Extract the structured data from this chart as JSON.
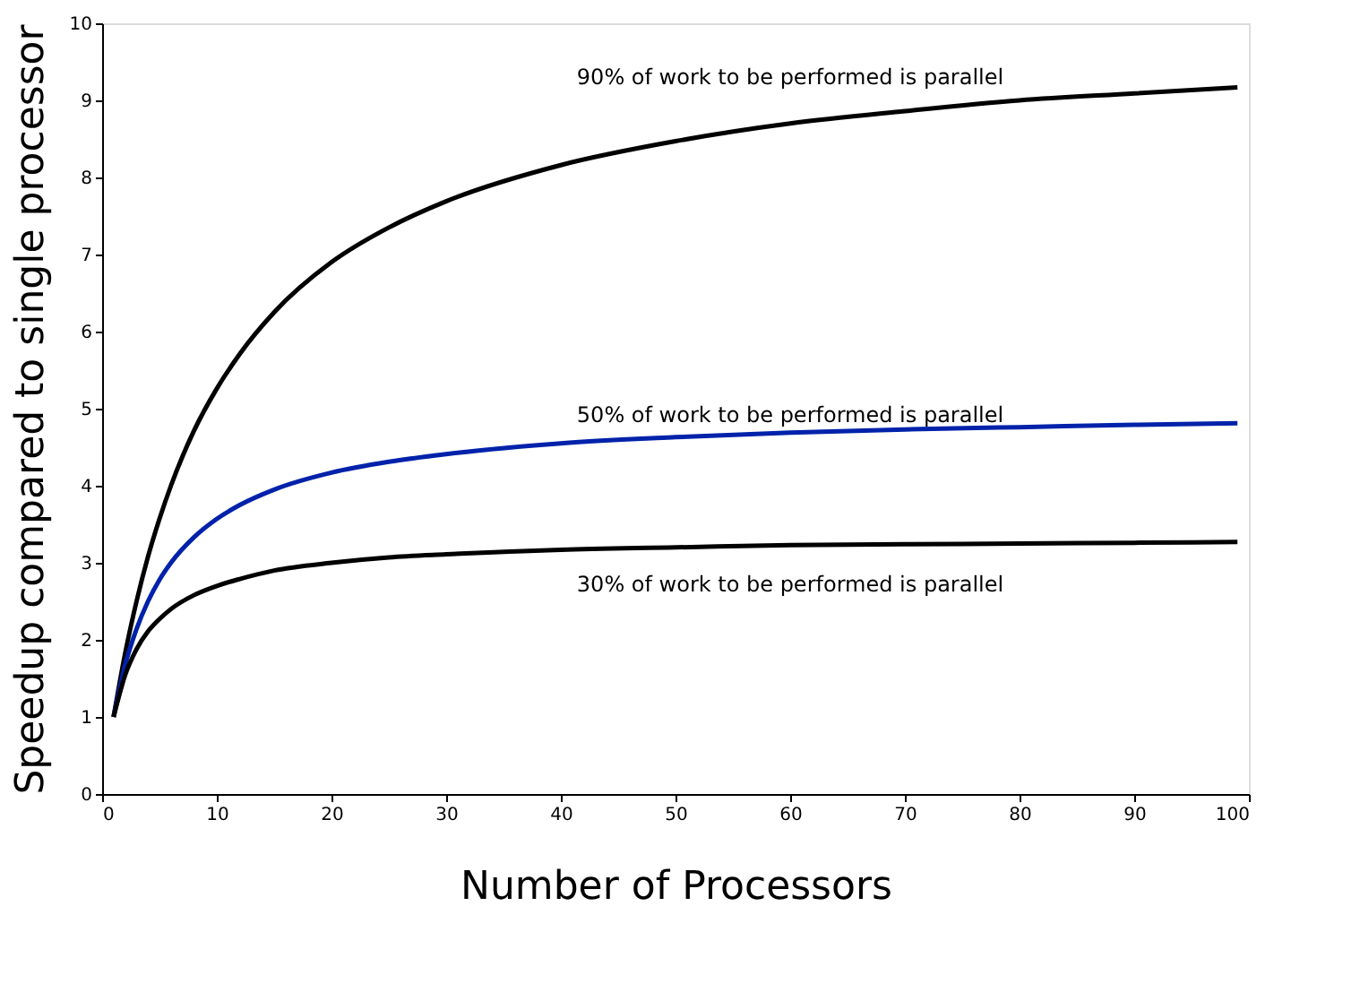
{
  "chart_data": {
    "type": "line",
    "xlabel": "Number of Processors",
    "ylabel": "Speedup compared to single processor",
    "x": [
      1,
      2,
      3,
      4,
      5,
      6,
      8,
      10,
      12,
      15,
      20,
      25,
      30,
      40,
      50,
      60,
      70,
      80,
      90,
      99
    ],
    "series": [
      {
        "name": "90% of work to be performed is parallel",
        "color": "#000000",
        "values": [
          1,
          1.82,
          2.5,
          3.08,
          3.57,
          4,
          4.71,
          5.26,
          5.71,
          6.25,
          6.9,
          7.35,
          7.69,
          8.16,
          8.47,
          8.7,
          8.86,
          9.0,
          9.09,
          9.17
        ]
      },
      {
        "name": "50% of work to be performed is parallel",
        "color": "#0022aa",
        "values": [
          1,
          1.67,
          2.14,
          2.5,
          2.78,
          3,
          3.33,
          3.57,
          3.75,
          3.95,
          4.17,
          4.31,
          4.41,
          4.55,
          4.63,
          4.69,
          4.73,
          4.76,
          4.79,
          4.81
        ]
      },
      {
        "name": "30% of work to be performed is parallel",
        "color": "#000000",
        "values": [
          1,
          1.54,
          1.88,
          2.11,
          2.27,
          2.4,
          2.58,
          2.7,
          2.79,
          2.9,
          3.0,
          3.07,
          3.11,
          3.17,
          3.2,
          3.23,
          3.24,
          3.25,
          3.26,
          3.27
        ]
      }
    ],
    "xlim": [
      0,
      100
    ],
    "xticks": [
      0,
      10,
      20,
      30,
      40,
      50,
      60,
      70,
      80,
      90,
      100
    ],
    "ylim": [
      0,
      10
    ],
    "yticks": [
      0,
      1,
      2,
      3,
      4,
      5,
      6,
      7,
      8,
      9,
      10
    ],
    "grid": false,
    "legend": false,
    "marker": "none",
    "line_style": "solid"
  }
}
